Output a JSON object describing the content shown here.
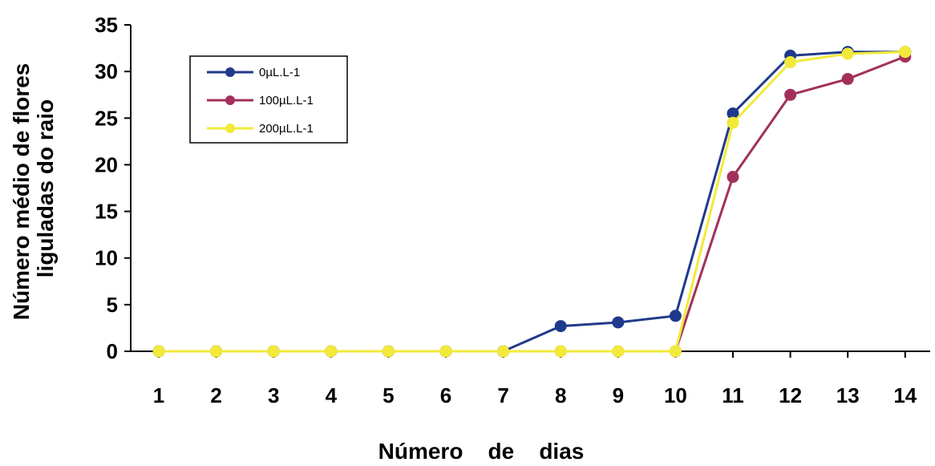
{
  "chart_data": {
    "type": "line",
    "title": "",
    "xlabel": "Número    de    dias",
    "ylabel_lines": [
      "Número médio de flores",
      "liguladas do raio"
    ],
    "x": [
      1,
      2,
      3,
      4,
      5,
      6,
      7,
      8,
      9,
      10,
      11,
      12,
      13,
      14
    ],
    "ylim": [
      0,
      35
    ],
    "yticks": [
      0,
      5,
      10,
      15,
      20,
      25,
      30,
      35
    ],
    "grid": false,
    "legend_position": "top-left",
    "series": [
      {
        "name": "0µL.L-1",
        "color": "#1f3a8a",
        "values": [
          0,
          0,
          0,
          0,
          0,
          0,
          0,
          2.7,
          3.1,
          3.8,
          25.5,
          31.7,
          32.1,
          32.1
        ]
      },
      {
        "name": "100µL.L-1",
        "color": "#a3305a",
        "values": [
          0,
          0,
          0,
          0,
          0,
          0,
          0,
          0,
          0,
          0,
          18.7,
          27.5,
          29.2,
          31.6
        ]
      },
      {
        "name": "200µL.L-1",
        "color": "#f2ea3a",
        "values": [
          0,
          0,
          0,
          0,
          0,
          0,
          0,
          0,
          0,
          0,
          24.5,
          31.0,
          31.9,
          32.1
        ]
      }
    ]
  }
}
